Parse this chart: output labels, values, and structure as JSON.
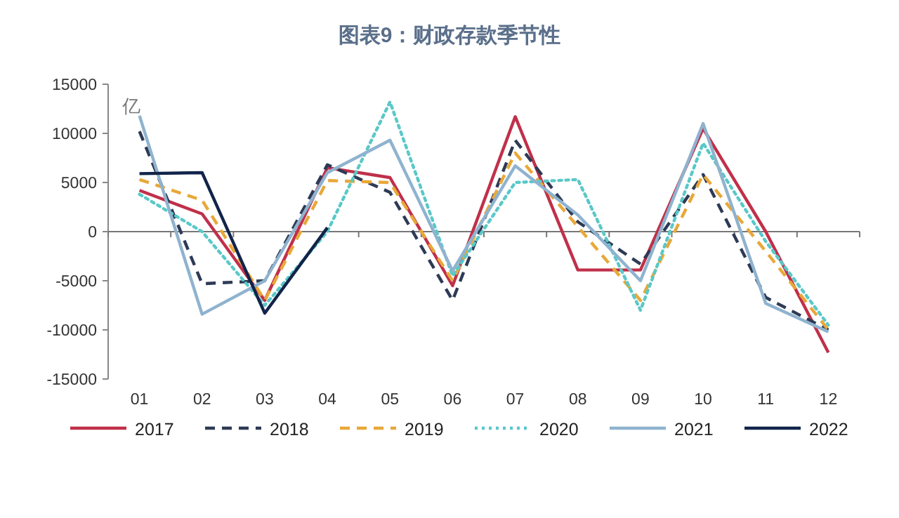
{
  "chart_data": {
    "type": "line",
    "title": "图表9：财政存款季节性",
    "ylabel": "亿",
    "categories": [
      "01",
      "02",
      "03",
      "04",
      "05",
      "06",
      "07",
      "08",
      "09",
      "10",
      "11",
      "12"
    ],
    "ylim": [
      -15000,
      15000
    ],
    "yticks": [
      -15000,
      -10000,
      -5000,
      0,
      5000,
      10000,
      15000
    ],
    "legend": "bottom",
    "marker": "none",
    "series": [
      {
        "name": "2017",
        "color": "#c0304a",
        "line_style": "solid",
        "values": [
          4200,
          1800,
          -7000,
          6500,
          5500,
          -5500,
          11700,
          -3900,
          -3900,
          10500,
          0,
          -12300
        ]
      },
      {
        "name": "2018",
        "color": "#2e3a55",
        "line_style": "dashed",
        "values": [
          10200,
          -5300,
          -5000,
          6800,
          4000,
          -7000,
          9300,
          1000,
          -3300,
          5800,
          -6700,
          -10000
        ]
      },
      {
        "name": "2019",
        "color": "#e8a838",
        "line_style": "dashed",
        "values": [
          5300,
          3200,
          -7000,
          5200,
          5000,
          -5000,
          8000,
          500,
          -7000,
          5800,
          -2000,
          -10000
        ]
      },
      {
        "name": "2020",
        "color": "#5ac8c8",
        "line_style": "dotted",
        "values": [
          3800,
          0,
          -7500,
          0,
          13200,
          -4500,
          5000,
          5300,
          -8000,
          9000,
          -1000,
          -9500
        ]
      },
      {
        "name": "2021",
        "color": "#8fb3cf",
        "line_style": "solid",
        "values": [
          11800,
          -8400,
          -5000,
          6000,
          9300,
          -4000,
          6700,
          1700,
          -5000,
          11000,
          -7300,
          -10200
        ]
      },
      {
        "name": "2022",
        "color": "#12244a",
        "line_style": "solid",
        "values": [
          5900,
          6000,
          -8300,
          400,
          null,
          null,
          null,
          null,
          null,
          null,
          null,
          null
        ]
      }
    ]
  }
}
